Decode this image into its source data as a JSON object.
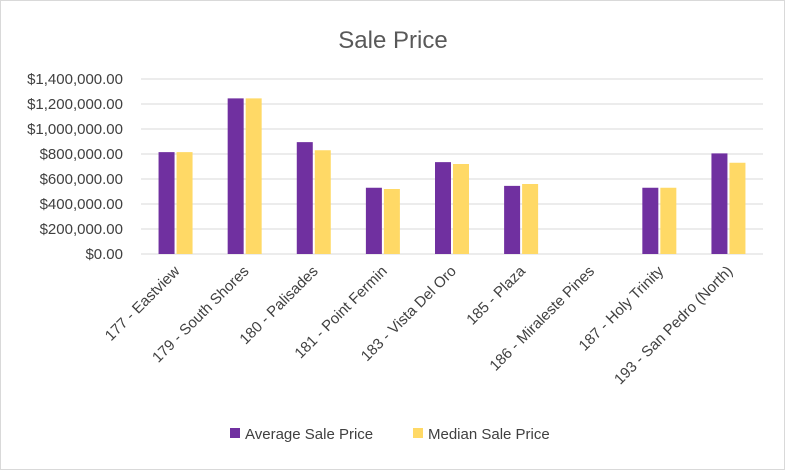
{
  "chart_data": {
    "type": "bar",
    "title": "Sale Price",
    "xlabel": "",
    "ylabel": "",
    "ylim": [
      0,
      1400000
    ],
    "yticks": [
      0,
      200000,
      400000,
      600000,
      800000,
      1000000,
      1200000,
      1400000
    ],
    "ytick_labels": [
      "$0.00",
      "$200,000.00",
      "$400,000.00",
      "$600,000.00",
      "$800,000.00",
      "$1,000,000.00",
      "$1,200,000.00",
      "$1,400,000.00"
    ],
    "categories": [
      "177 - Eastview",
      "179 - South Shores",
      "180 - Palisades",
      "181 - Point Fermin",
      "183 - Vista Del Oro",
      "185 - Plaza",
      "186 - Miraleste Pines",
      "187 - Holy Trinity",
      "193 - San Pedro (North)"
    ],
    "series": [
      {
        "name": "Average Sale Price",
        "color": "#7030a0",
        "values": [
          815000,
          1245000,
          895000,
          530000,
          735000,
          545000,
          null,
          530000,
          805000
        ]
      },
      {
        "name": "Median Sale Price",
        "color": "#ffd966",
        "values": [
          815000,
          1245000,
          830000,
          520000,
          720000,
          560000,
          null,
          530000,
          730000
        ]
      }
    ],
    "grid": true,
    "legend": "bottom"
  }
}
